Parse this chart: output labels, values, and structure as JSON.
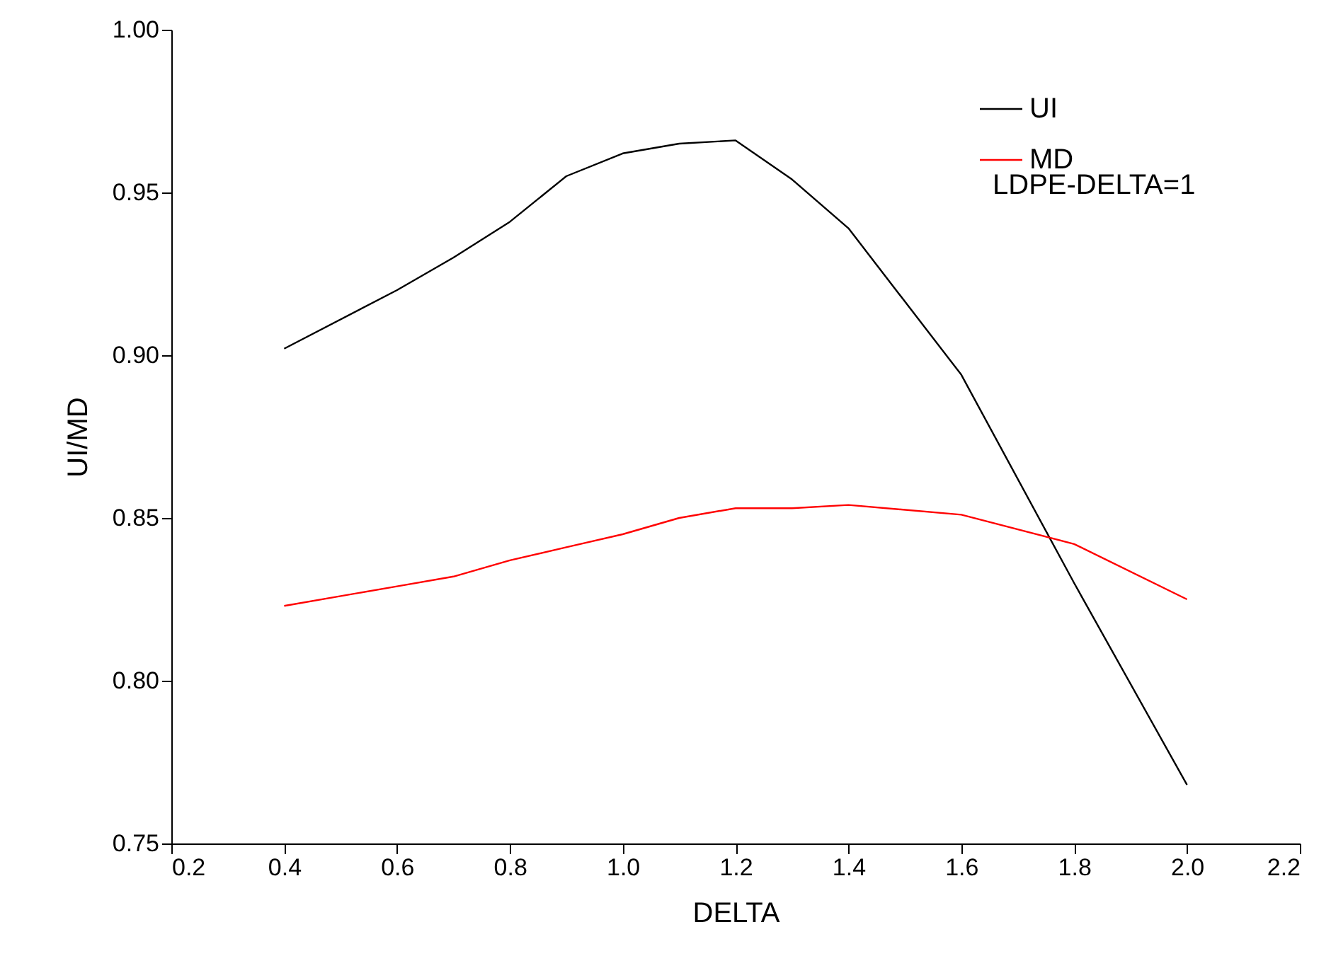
{
  "chart_data": {
    "type": "line",
    "xlabel": "DELTA",
    "ylabel": "UI/MD",
    "x": [
      0.4,
      0.6,
      0.7,
      0.8,
      0.9,
      1.0,
      1.1,
      1.2,
      1.3,
      1.4,
      1.6,
      1.8,
      2.0
    ],
    "series": [
      {
        "name": "UI",
        "color": "#000000",
        "values": [
          0.902,
          0.92,
          0.93,
          0.941,
          0.955,
          0.962,
          0.965,
          0.966,
          0.954,
          0.939,
          0.894,
          0.83,
          0.768
        ]
      },
      {
        "name": "MD",
        "color": "#ff0000",
        "values": [
          0.823,
          0.829,
          0.832,
          0.837,
          0.841,
          0.845,
          0.85,
          0.853,
          0.853,
          0.854,
          0.851,
          0.842,
          0.825
        ]
      }
    ],
    "xlim": [
      0.2,
      2.2
    ],
    "xticks": [
      0.2,
      0.4,
      0.6,
      0.8,
      {
        "value": 1.0,
        "label": "1.0"
      },
      1.2,
      1.4,
      1.6,
      1.8,
      {
        "value": 2.0,
        "label": "2.0"
      },
      2.2
    ],
    "ylim": [
      0.75,
      1.0
    ],
    "yticks": [
      0.75,
      {
        "value": 0.8,
        "label": "0.80"
      },
      0.85,
      {
        "value": 0.9,
        "label": "0.90"
      },
      0.95,
      {
        "value": 1.0,
        "label": "1.00"
      }
    ],
    "annotations": [
      "LDPE-DELTA=1"
    ],
    "legend": "top right",
    "grid": false,
    "marker": "none",
    "line_style": "solid"
  }
}
